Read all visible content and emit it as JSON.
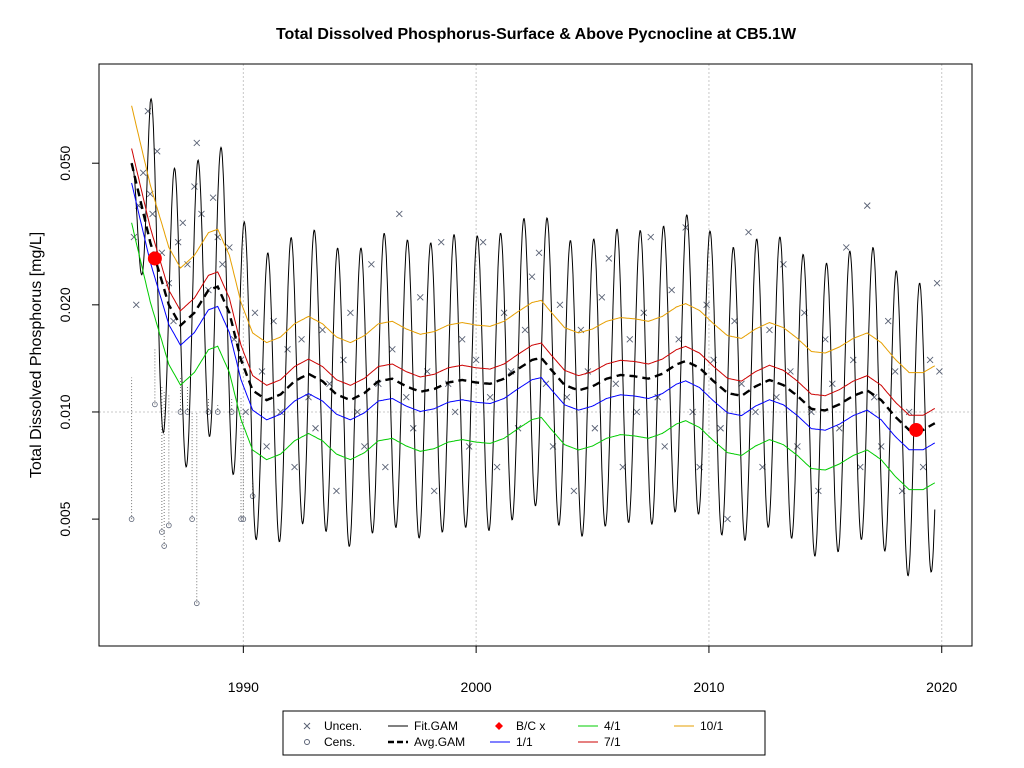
{
  "chart_data": {
    "type": "scatter",
    "title": "Total Dissolved Phosphorus-Surface & Above Pycnocline at CB5.1W",
    "ylabel": "Total Dissolved Phosphorus [mg/L]",
    "xlabel": "",
    "y_scale": "log",
    "xlim": [
      1983.8,
      2021.3
    ],
    "ylim": [
      0.0022,
      0.095
    ],
    "x_ticks": [
      "1990",
      "2000",
      "2010",
      "2020"
    ],
    "y_ticks": [
      "0.005",
      "0.010",
      "0.020",
      "0.050"
    ],
    "x_tick_values": [
      1990,
      2000,
      2010,
      2020
    ],
    "y_tick_values": [
      0.005,
      0.01,
      0.02,
      0.05
    ],
    "grid": true,
    "reference_line_y": 0.01,
    "legend": {
      "position": "bottom",
      "entries": [
        {
          "label": "Uncen.",
          "symbol": "x",
          "color": "#5a6275"
        },
        {
          "label": "Cens.",
          "symbol": "o",
          "color": "#5a6275"
        },
        {
          "label": "Fit.GAM",
          "symbol": "line",
          "color": "#000000"
        },
        {
          "label": "Avg.GAM",
          "symbol": "dash",
          "color": "#000000"
        },
        {
          "label": "B/C x",
          "symbol": "diamond",
          "color": "#ff0000"
        },
        {
          "label": "1/1",
          "symbol": "line",
          "color": "#0000ff"
        },
        {
          "label": "4/1",
          "symbol": "line",
          "color": "#00cc00"
        },
        {
          "label": "7/1",
          "symbol": "line",
          "color": "#cc0000"
        },
        {
          "label": "10/1",
          "symbol": "line",
          "color": "#e69f00"
        }
      ]
    },
    "series": [
      {
        "name": "Uncen.",
        "kind": "points",
        "color": "#5a6275",
        "points": [
          [
            1985.3,
            0.031
          ],
          [
            1985.4,
            0.02
          ],
          [
            1985.5,
            0.038
          ],
          [
            1985.7,
            0.047
          ],
          [
            1985.9,
            0.07
          ],
          [
            1986.0,
            0.041
          ],
          [
            1986.1,
            0.036
          ],
          [
            1986.3,
            0.054
          ],
          [
            1986.5,
            0.028
          ],
          [
            1986.8,
            0.023
          ],
          [
            1987.0,
            0.018
          ],
          [
            1987.2,
            0.03
          ],
          [
            1987.4,
            0.034
          ],
          [
            1987.6,
            0.026
          ],
          [
            1987.9,
            0.043
          ],
          [
            1988.0,
            0.057
          ],
          [
            1988.2,
            0.036
          ],
          [
            1988.5,
            0.022
          ],
          [
            1988.7,
            0.04
          ],
          [
            1988.9,
            0.031
          ],
          [
            1989.1,
            0.026
          ],
          [
            1989.4,
            0.029
          ],
          [
            1989.6,
            0.016
          ],
          [
            1989.9,
            0.014
          ],
          [
            1990.1,
            0.01
          ],
          [
            1990.5,
            0.019
          ],
          [
            1990.8,
            0.013
          ],
          [
            1991.0,
            0.008
          ],
          [
            1991.3,
            0.018
          ],
          [
            1991.6,
            0.01
          ],
          [
            1991.9,
            0.015
          ],
          [
            1992.2,
            0.007
          ],
          [
            1992.5,
            0.016
          ],
          [
            1992.8,
            0.011
          ],
          [
            1993.1,
            0.009
          ],
          [
            1993.4,
            0.017
          ],
          [
            1993.7,
            0.012
          ],
          [
            1994.0,
            0.006
          ],
          [
            1994.3,
            0.014
          ],
          [
            1994.6,
            0.019
          ],
          [
            1994.9,
            0.01
          ],
          [
            1995.2,
            0.008
          ],
          [
            1995.5,
            0.026
          ],
          [
            1995.8,
            0.012
          ],
          [
            1996.1,
            0.007
          ],
          [
            1996.4,
            0.015
          ],
          [
            1996.7,
            0.036
          ],
          [
            1997.0,
            0.011
          ],
          [
            1997.3,
            0.009
          ],
          [
            1997.6,
            0.021
          ],
          [
            1997.9,
            0.013
          ],
          [
            1998.2,
            0.006
          ],
          [
            1998.5,
            0.03
          ],
          [
            1998.8,
            0.012
          ],
          [
            1999.1,
            0.01
          ],
          [
            1999.4,
            0.016
          ],
          [
            1999.7,
            0.008
          ],
          [
            2000.0,
            0.014
          ],
          [
            2000.3,
            0.03
          ],
          [
            2000.6,
            0.011
          ],
          [
            2000.9,
            0.007
          ],
          [
            2001.2,
            0.019
          ],
          [
            2001.5,
            0.013
          ],
          [
            2001.8,
            0.009
          ],
          [
            2002.1,
            0.017
          ],
          [
            2002.4,
            0.024
          ],
          [
            2002.7,
            0.028
          ],
          [
            2003.0,
            0.012
          ],
          [
            2003.3,
            0.008
          ],
          [
            2003.6,
            0.02
          ],
          [
            2003.9,
            0.011
          ],
          [
            2004.2,
            0.006
          ],
          [
            2004.5,
            0.017
          ],
          [
            2004.8,
            0.013
          ],
          [
            2005.1,
            0.009
          ],
          [
            2005.4,
            0.021
          ],
          [
            2005.7,
            0.027
          ],
          [
            2006.0,
            0.012
          ],
          [
            2006.3,
            0.007
          ],
          [
            2006.6,
            0.016
          ],
          [
            2006.9,
            0.01
          ],
          [
            2007.2,
            0.019
          ],
          [
            2007.5,
            0.031
          ],
          [
            2007.8,
            0.011
          ],
          [
            2008.1,
            0.008
          ],
          [
            2008.4,
            0.022
          ],
          [
            2008.7,
            0.016
          ],
          [
            2009.0,
            0.033
          ],
          [
            2009.3,
            0.01
          ],
          [
            2009.6,
            0.007
          ],
          [
            2009.9,
            0.02
          ],
          [
            2010.2,
            0.014
          ],
          [
            2010.5,
            0.009
          ],
          [
            2010.8,
            0.005
          ],
          [
            2011.1,
            0.018
          ],
          [
            2011.4,
            0.012
          ],
          [
            2011.7,
            0.032
          ],
          [
            2012.0,
            0.01
          ],
          [
            2012.3,
            0.007
          ],
          [
            2012.6,
            0.017
          ],
          [
            2012.9,
            0.011
          ],
          [
            2013.2,
            0.026
          ],
          [
            2013.5,
            0.013
          ],
          [
            2013.8,
            0.008
          ],
          [
            2014.1,
            0.019
          ],
          [
            2014.4,
            0.01
          ],
          [
            2014.7,
            0.006
          ],
          [
            2015.0,
            0.016
          ],
          [
            2015.3,
            0.012
          ],
          [
            2015.6,
            0.009
          ],
          [
            2015.9,
            0.029
          ],
          [
            2016.2,
            0.014
          ],
          [
            2016.5,
            0.007
          ],
          [
            2016.8,
            0.038
          ],
          [
            2017.1,
            0.011
          ],
          [
            2017.4,
            0.008
          ],
          [
            2017.7,
            0.018
          ],
          [
            2018.0,
            0.013
          ],
          [
            2018.3,
            0.006
          ],
          [
            2018.6,
            0.01
          ],
          [
            2018.9,
            0.009
          ],
          [
            2019.2,
            0.007
          ],
          [
            2019.5,
            0.014
          ],
          [
            2019.8,
            0.023
          ],
          [
            2019.9,
            0.013
          ]
        ]
      },
      {
        "name": "Cens.",
        "kind": "censored",
        "color": "#5a6275",
        "points": [
          [
            1985.2,
            0.005,
            0.0125
          ],
          [
            1986.2,
            0.0105,
            0.015
          ],
          [
            1986.5,
            0.0046,
            0.0118
          ],
          [
            1986.6,
            0.0042,
            0.0115
          ],
          [
            1986.8,
            0.0048,
            0.0112
          ],
          [
            1987.3,
            0.01,
            0.0125
          ],
          [
            1987.6,
            0.01,
            0.0118
          ],
          [
            1987.8,
            0.005,
            0.01
          ],
          [
            1988.0,
            0.0029,
            0.01
          ],
          [
            1988.5,
            0.01,
            0.011
          ],
          [
            1988.9,
            0.01,
            0.0105
          ],
          [
            1989.5,
            0.01,
            0.011
          ],
          [
            1989.9,
            0.005,
            0.011
          ],
          [
            1990.0,
            0.005,
            0.01
          ],
          [
            1990.4,
            0.0058,
            0.0064
          ]
        ]
      },
      {
        "name": "Fit.GAM",
        "kind": "seasonal",
        "color": "#000000",
        "seasonal_amplitude_log": 0.95
      },
      {
        "name": "Avg.GAM",
        "kind": "trend",
        "color": "#000000",
        "dashed": true,
        "points": [
          [
            1985.2,
            0.05
          ],
          [
            1986.0,
            0.03
          ],
          [
            1986.8,
            0.02
          ],
          [
            1987.3,
            0.0175
          ],
          [
            1987.9,
            0.019
          ],
          [
            1988.5,
            0.022
          ],
          [
            1988.9,
            0.0225
          ],
          [
            1989.4,
            0.019
          ],
          [
            1989.9,
            0.014
          ],
          [
            1990.4,
            0.0115
          ],
          [
            1991.0,
            0.0108
          ],
          [
            1991.6,
            0.0112
          ],
          [
            1992.2,
            0.0122
          ],
          [
            1992.8,
            0.0128
          ],
          [
            1993.4,
            0.0122
          ],
          [
            1994.0,
            0.0112
          ],
          [
            1994.6,
            0.0108
          ],
          [
            1995.2,
            0.0113
          ],
          [
            1995.8,
            0.0122
          ],
          [
            1996.4,
            0.0124
          ],
          [
            1997.0,
            0.0118
          ],
          [
            1997.6,
            0.0114
          ],
          [
            1998.2,
            0.0116
          ],
          [
            1998.8,
            0.0121
          ],
          [
            1999.4,
            0.0123
          ],
          [
            2000.0,
            0.0121
          ],
          [
            2000.6,
            0.012
          ],
          [
            2001.2,
            0.0124
          ],
          [
            2001.8,
            0.0132
          ],
          [
            2002.4,
            0.014
          ],
          [
            2002.8,
            0.0142
          ],
          [
            2003.2,
            0.0132
          ],
          [
            2003.8,
            0.0119
          ],
          [
            2004.4,
            0.0115
          ],
          [
            2005.0,
            0.0118
          ],
          [
            2005.6,
            0.0124
          ],
          [
            2006.2,
            0.0127
          ],
          [
            2006.8,
            0.0126
          ],
          [
            2007.4,
            0.0124
          ],
          [
            2008.0,
            0.0128
          ],
          [
            2008.6,
            0.0136
          ],
          [
            2009.0,
            0.0139
          ],
          [
            2009.6,
            0.0133
          ],
          [
            2010.2,
            0.0122
          ],
          [
            2010.8,
            0.0113
          ],
          [
            2011.4,
            0.0111
          ],
          [
            2012.0,
            0.0118
          ],
          [
            2012.6,
            0.0123
          ],
          [
            2013.2,
            0.0119
          ],
          [
            2013.8,
            0.0111
          ],
          [
            2014.4,
            0.0102
          ],
          [
            2015.0,
            0.0101
          ],
          [
            2015.6,
            0.0105
          ],
          [
            2016.2,
            0.0111
          ],
          [
            2016.8,
            0.0115
          ],
          [
            2017.4,
            0.0108
          ],
          [
            2018.0,
            0.0097
          ],
          [
            2018.6,
            0.0089
          ],
          [
            2019.2,
            0.0089
          ],
          [
            2019.7,
            0.0093
          ]
        ]
      },
      {
        "name": "B/C x",
        "kind": "markers",
        "color": "#ff0000",
        "points": [
          [
            1986.2,
            0.027
          ],
          [
            2018.9,
            0.0089
          ]
        ]
      },
      {
        "name": "1/1",
        "kind": "trend_offset",
        "color": "#0000ff",
        "factor": 0.88
      },
      {
        "name": "4/1",
        "kind": "trend_offset",
        "color": "#00cc00",
        "factor": 0.68
      },
      {
        "name": "7/1",
        "kind": "trend_offset",
        "color": "#cc0000",
        "factor": 1.1
      },
      {
        "name": "10/1",
        "kind": "trend_offset",
        "color": "#e69f00",
        "factor": 1.45
      }
    ]
  }
}
